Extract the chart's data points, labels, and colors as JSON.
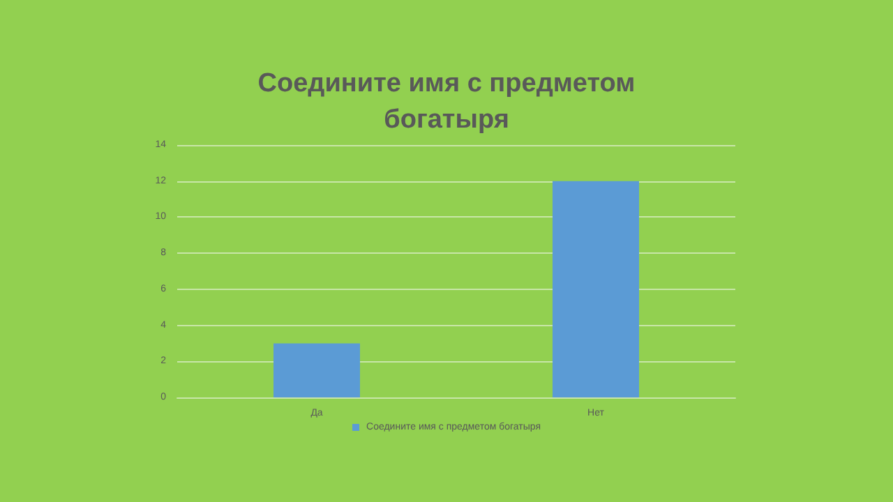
{
  "chart_data": {
    "type": "bar",
    "title": "Соедините имя с предметом\nбогатыря",
    "categories": [
      "Да",
      "Нет"
    ],
    "series": [
      {
        "name": "Соедините имя с предметом богатыря",
        "color": "#5b9bd5",
        "values": [
          3,
          12
        ]
      }
    ],
    "ylim": [
      0,
      14
    ],
    "yticks": [
      0,
      2,
      4,
      6,
      8,
      10,
      12,
      14
    ],
    "grid": "y",
    "legend": "bottom"
  }
}
